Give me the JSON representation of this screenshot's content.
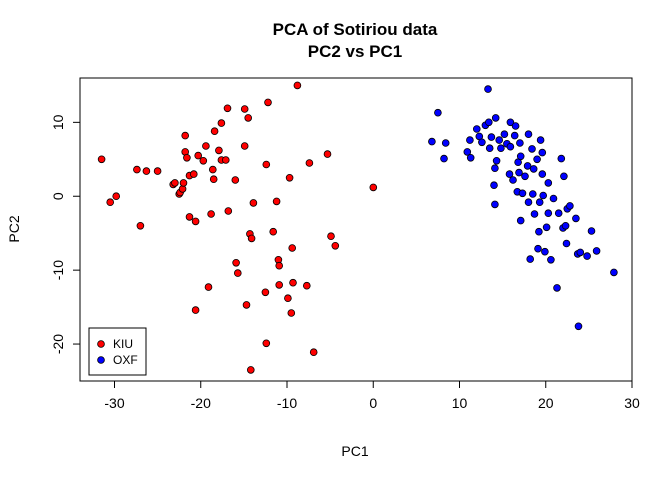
{
  "chart_data": {
    "type": "scatter",
    "title": "PCA of Sotiriou data",
    "subtitle": "PC2 vs PC1",
    "xlabel": "PC1",
    "ylabel": "PC2",
    "xlim": [
      -34,
      30
    ],
    "ylim": [
      -25,
      16
    ],
    "xticks": [
      -30,
      -20,
      -10,
      0,
      10,
      20,
      30
    ],
    "yticks": [
      -20,
      -10,
      0,
      10
    ],
    "grid": false,
    "legend_position": "bottom-left",
    "series": [
      {
        "name": "KIU",
        "color": "#FF0000",
        "points": [
          [
            -31.5,
            5.0
          ],
          [
            -30.5,
            -0.8
          ],
          [
            -29.8,
            0.0
          ],
          [
            -27.4,
            3.6
          ],
          [
            -27.0,
            -4.0
          ],
          [
            -26.3,
            3.4
          ],
          [
            -25.0,
            3.4
          ],
          [
            -23.2,
            1.6
          ],
          [
            -23.0,
            1.8
          ],
          [
            -22.5,
            0.3
          ],
          [
            -22.4,
            0.5
          ],
          [
            -22.1,
            1.0
          ],
          [
            -22.0,
            1.8
          ],
          [
            -21.8,
            8.2
          ],
          [
            -21.8,
            6.0
          ],
          [
            -21.6,
            5.2
          ],
          [
            -21.3,
            2.8
          ],
          [
            -21.3,
            -2.8
          ],
          [
            -20.8,
            3.0
          ],
          [
            -20.6,
            -3.4
          ],
          [
            -20.6,
            -15.4
          ],
          [
            -20.3,
            5.5
          ],
          [
            -19.7,
            4.8
          ],
          [
            -19.4,
            6.8
          ],
          [
            -19.1,
            -12.3
          ],
          [
            -18.8,
            -2.4
          ],
          [
            -18.5,
            2.3
          ],
          [
            -18.6,
            3.6
          ],
          [
            -18.4,
            8.8
          ],
          [
            -17.9,
            6.2
          ],
          [
            -17.6,
            9.9
          ],
          [
            -17.6,
            4.9
          ],
          [
            -17.1,
            4.9
          ],
          [
            -16.8,
            -2.0
          ],
          [
            -16.9,
            11.9
          ],
          [
            -16.0,
            2.2
          ],
          [
            -15.9,
            -9.0
          ],
          [
            -15.7,
            -10.4
          ],
          [
            -14.9,
            11.8
          ],
          [
            -14.9,
            6.8
          ],
          [
            -14.5,
            10.6
          ],
          [
            -14.7,
            -14.7
          ],
          [
            -14.3,
            -5.1
          ],
          [
            -14.1,
            -5.7
          ],
          [
            -14.2,
            -23.5
          ],
          [
            -13.9,
            -0.9
          ],
          [
            -12.4,
            4.3
          ],
          [
            -12.2,
            12.7
          ],
          [
            -12.5,
            -13.0
          ],
          [
            -12.4,
            -19.9
          ],
          [
            -11.6,
            -4.8
          ],
          [
            -11.2,
            -0.7
          ],
          [
            -11.0,
            -8.6
          ],
          [
            -10.9,
            -9.4
          ],
          [
            -10.9,
            -12.0
          ],
          [
            -9.9,
            -13.8
          ],
          [
            -9.7,
            2.5
          ],
          [
            -9.5,
            -15.8
          ],
          [
            -9.4,
            -7.0
          ],
          [
            -9.3,
            -11.7
          ],
          [
            -8.8,
            15.0
          ],
          [
            -7.7,
            -12.1
          ],
          [
            -7.4,
            4.5
          ],
          [
            -6.9,
            -21.1
          ],
          [
            -5.3,
            5.7
          ],
          [
            -4.9,
            -5.4
          ],
          [
            -4.4,
            -6.7
          ],
          [
            0.0,
            1.2
          ]
        ]
      },
      {
        "name": "OXF",
        "color": "#0000FF",
        "points": [
          [
            6.8,
            7.4
          ],
          [
            7.5,
            11.3
          ],
          [
            8.2,
            5.1
          ],
          [
            8.4,
            7.2
          ],
          [
            10.9,
            6.0
          ],
          [
            11.2,
            7.6
          ],
          [
            11.3,
            5.2
          ],
          [
            12.0,
            9.1
          ],
          [
            12.3,
            8.1
          ],
          [
            12.6,
            7.3
          ],
          [
            13.0,
            9.6
          ],
          [
            13.3,
            14.5
          ],
          [
            13.4,
            10.0
          ],
          [
            13.5,
            6.5
          ],
          [
            13.7,
            8.0
          ],
          [
            14.1,
            3.8
          ],
          [
            14.0,
            1.5
          ],
          [
            14.1,
            -1.1
          ],
          [
            14.2,
            10.6
          ],
          [
            14.3,
            4.8
          ],
          [
            14.6,
            7.6
          ],
          [
            14.8,
            6.5
          ],
          [
            15.2,
            8.4
          ],
          [
            15.5,
            7.1
          ],
          [
            15.8,
            3.0
          ],
          [
            15.9,
            10.0
          ],
          [
            15.9,
            6.7
          ],
          [
            16.2,
            2.2
          ],
          [
            16.4,
            8.2
          ],
          [
            16.5,
            9.5
          ],
          [
            16.7,
            0.6
          ],
          [
            16.8,
            4.6
          ],
          [
            16.9,
            3.2
          ],
          [
            17.0,
            7.2
          ],
          [
            17.1,
            5.4
          ],
          [
            17.1,
            -3.3
          ],
          [
            17.3,
            0.4
          ],
          [
            17.6,
            2.7
          ],
          [
            17.9,
            4.1
          ],
          [
            18.0,
            -0.8
          ],
          [
            18.0,
            8.4
          ],
          [
            18.2,
            -8.5
          ],
          [
            18.4,
            6.4
          ],
          [
            18.5,
            0.3
          ],
          [
            18.6,
            3.7
          ],
          [
            18.7,
            -2.4
          ],
          [
            19.0,
            5.0
          ],
          [
            19.2,
            -4.8
          ],
          [
            19.1,
            -7.1
          ],
          [
            19.3,
            -0.8
          ],
          [
            19.4,
            7.6
          ],
          [
            19.6,
            5.9
          ],
          [
            19.7,
            0.1
          ],
          [
            19.6,
            3.0
          ],
          [
            19.9,
            -7.5
          ],
          [
            20.1,
            -4.2
          ],
          [
            20.3,
            1.8
          ],
          [
            20.3,
            -2.3
          ],
          [
            20.6,
            -8.6
          ],
          [
            20.9,
            -0.3
          ],
          [
            21.3,
            -12.4
          ],
          [
            21.5,
            -2.3
          ],
          [
            21.8,
            5.1
          ],
          [
            22.0,
            -4.3
          ],
          [
            22.1,
            2.7
          ],
          [
            22.3,
            -4.0
          ],
          [
            22.4,
            -6.4
          ],
          [
            22.5,
            -1.7
          ],
          [
            22.8,
            -1.3
          ],
          [
            23.5,
            -3.0
          ],
          [
            23.8,
            -17.6
          ],
          [
            23.7,
            -7.8
          ],
          [
            24.0,
            -7.6
          ],
          [
            24.8,
            -8.1
          ],
          [
            25.3,
            -4.7
          ],
          [
            25.9,
            -7.4
          ],
          [
            27.9,
            -10.3
          ]
        ]
      }
    ]
  }
}
